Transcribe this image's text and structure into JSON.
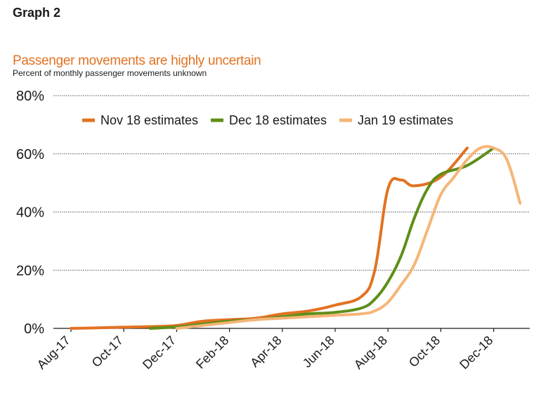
{
  "header": {
    "graph_label": "Graph 2",
    "title": "Passenger movements are highly uncertain",
    "subtitle": "Percent of monthly passenger movements unknown"
  },
  "colors": {
    "nov": "#e27222",
    "dec": "#5e8f19",
    "jan": "#f5b577",
    "title": "#e27222",
    "grid": "#555555",
    "axis": "#1a1a1a"
  },
  "chart_data": {
    "type": "line",
    "y_ticks": [
      "0%",
      "20%",
      "40%",
      "60%",
      "80%"
    ],
    "ylim": [
      0,
      80
    ],
    "x_ticks": [
      "Aug-17",
      "Oct-17",
      "Dec-17",
      "Feb-18",
      "Apr-18",
      "Jun-18",
      "Aug-18",
      "Oct-18",
      "Dec-18"
    ],
    "xlim": [
      0,
      17.5
    ],
    "grid": "horizontal dotted",
    "legend_position": "top",
    "series": [
      {
        "name": "Nov 18 estimates",
        "color": "#e27222",
        "x": [
          0,
          1,
          2,
          3,
          4,
          5,
          6,
          7,
          8,
          9,
          10,
          11,
          11.5,
          12,
          12.5,
          13,
          14,
          15
        ],
        "values": [
          0,
          0.2,
          0.4,
          0.6,
          1,
          2.5,
          3,
          3.5,
          5,
          6,
          8,
          11,
          20,
          48,
          51,
          49,
          52,
          62
        ]
      },
      {
        "name": "Dec 18 estimates",
        "color": "#5e8f19",
        "x": [
          3,
          4,
          5,
          6,
          7,
          8,
          9,
          10,
          11,
          11.5,
          12,
          12.5,
          13,
          13.5,
          14,
          15,
          16
        ],
        "values": [
          0,
          0.5,
          1.5,
          2.5,
          3,
          4,
          5,
          5.5,
          7,
          10,
          16,
          25,
          38,
          48,
          53,
          56,
          62
        ]
      },
      {
        "name": "Jan 19 estimates",
        "color": "#f5b577",
        "x": [
          4,
          5,
          6,
          7,
          8,
          9,
          10,
          11,
          11.5,
          12,
          12.5,
          13,
          13.5,
          14,
          14.5,
          15,
          15.5,
          16,
          16.5,
          17
        ],
        "values": [
          0,
          1,
          2,
          3,
          3.5,
          4,
          4.5,
          5,
          6,
          9,
          15,
          22,
          34,
          46,
          52,
          58,
          62,
          62,
          58,
          43
        ]
      }
    ]
  }
}
